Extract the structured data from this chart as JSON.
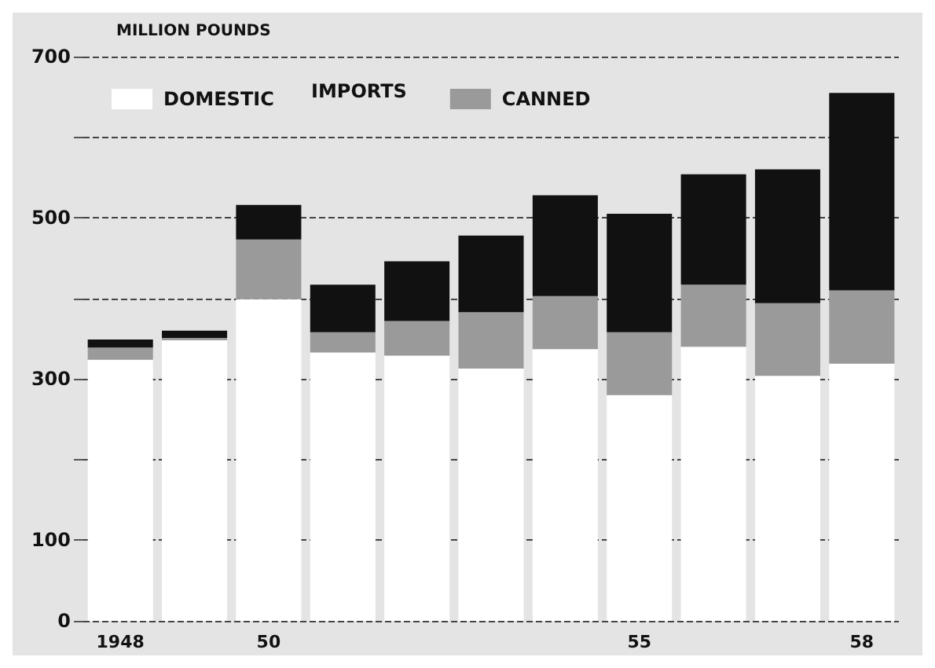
{
  "chart_data": {
    "type": "bar",
    "stacked": true,
    "ylabel": "MILLION POUNDS",
    "categories": [
      "1948",
      null,
      "50",
      null,
      null,
      null,
      null,
      "55",
      null,
      null,
      "58"
    ],
    "series": [
      {
        "name": "DOMESTIC",
        "color": "#ffffff",
        "values": [
          324,
          348,
          399,
          333,
          329,
          313,
          337,
          280,
          340,
          304,
          319
        ]
      },
      {
        "name": "CANNED",
        "color": "#9a9a9a",
        "values": [
          15,
          3,
          74,
          25,
          43,
          70,
          66,
          78,
          77,
          90,
          91
        ]
      },
      {
        "color": "#111111",
        "values": [
          10,
          9,
          43,
          59,
          74,
          95,
          125,
          147,
          137,
          166,
          245
        ]
      }
    ],
    "annotations": [
      "IMPORTS"
    ],
    "ylim": [
      0,
      700
    ],
    "yticks": [
      0,
      100,
      {
        "value": 200,
        "label": null
      },
      300,
      {
        "value": 400,
        "label": null
      },
      500,
      {
        "value": 600,
        "label": null
      },
      700
    ],
    "grid": "y",
    "legend": "top left"
  }
}
